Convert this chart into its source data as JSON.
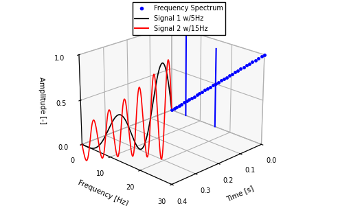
{
  "xlabel": "Time [s]",
  "ylabel": "Frequency [Hz]",
  "zlabel": "Amplitude [-]",
  "time_range": [
    0,
    0.4
  ],
  "freq_range": [
    0,
    30
  ],
  "amp_range": [
    0,
    1
  ],
  "signal1_freq": 5,
  "signal2_freq": 15,
  "signal1_color": "#000000",
  "signal2_color": "#ff0000",
  "spectrum_color": "#0000ff",
  "legend_entries": [
    "Frequency Spectrum",
    "Signal 1 w/5Hz",
    "Signal 2 w/15Hz"
  ],
  "freq_ticks": [
    0,
    10,
    20,
    30
  ],
  "time_ticks": [
    0,
    0.1,
    0.2,
    0.3,
    0.4
  ],
  "amp_ticks": [
    0,
    0.5,
    1
  ],
  "spike_freq1": 5,
  "spike_amp1": 1.0,
  "spike_freq2": 15,
  "spike_amp2": 0.9,
  "elev": 22,
  "azim": 45,
  "signal1_amp": 0.8,
  "signal1_decay": 6,
  "signal2_amp": 0.65,
  "signal2_decay": 3,
  "spectrum_n_dots": 35,
  "background_color": "#ffffff",
  "pane_color": "#e8e8e8"
}
